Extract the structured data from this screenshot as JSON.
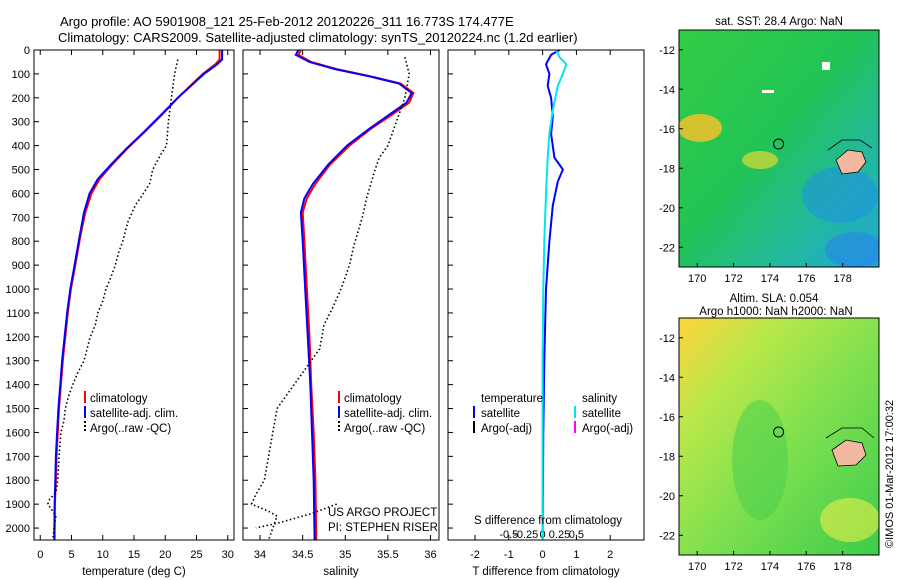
{
  "header": {
    "line1": "Argo profile: AO 5901908_121 25-Feb-2012 20120226_311 16.773S 174.477E",
    "line2": "Climatology: CARS2009. Satellite-adjusted climatology: synTS_20120224.nc (1.2d earlier)"
  },
  "side_stamp": "©IMOS 01-Mar-2012 17:00:32",
  "credits": {
    "project": "US ARGO PROJECT",
    "pi": "PI: STEPHEN RISER"
  },
  "colors": {
    "climatology": "#ff0000",
    "satellite": "#0000ff",
    "argo": "#000000",
    "sat_salinity": "#00e5ee",
    "argo_salinity": "#ff00ff"
  },
  "chart_data": [
    {
      "type": "line",
      "xlabel": "temperature (deg C)",
      "ylabel": "",
      "xlim": [
        -1,
        31
      ],
      "ylim": [
        2050,
        0
      ],
      "xticks": [
        0,
        5,
        10,
        15,
        20,
        25,
        30
      ],
      "yticks": [
        0,
        100,
        200,
        300,
        400,
        500,
        600,
        700,
        800,
        900,
        1000,
        1100,
        1200,
        1300,
        1400,
        1500,
        1600,
        1700,
        1800,
        1900,
        2000
      ],
      "legend": [
        "climatology",
        "satellite-adj. clim.",
        "Argo(..raw -QC)"
      ],
      "series": [
        {
          "name": "climatology",
          "color": "#ff0000",
          "style": "solid",
          "points": [
            [
              28.7,
              0
            ],
            [
              28.7,
              40
            ],
            [
              28.0,
              60
            ],
            [
              26.0,
              100
            ],
            [
              24.0,
              150
            ],
            [
              22.0,
              200
            ],
            [
              19.5,
              270
            ],
            [
              16.8,
              340
            ],
            [
              14.0,
              410
            ],
            [
              11.5,
              480
            ],
            [
              9.5,
              540
            ],
            [
              8.2,
              600
            ],
            [
              7.2,
              680
            ],
            [
              6.4,
              780
            ],
            [
              5.6,
              900
            ],
            [
              4.9,
              1000
            ],
            [
              4.4,
              1100
            ],
            [
              4.0,
              1200
            ],
            [
              3.6,
              1300
            ],
            [
              3.3,
              1400
            ],
            [
              3.0,
              1500
            ],
            [
              2.8,
              1600
            ],
            [
              2.6,
              1700
            ],
            [
              2.5,
              1800
            ],
            [
              2.35,
              1900
            ],
            [
              2.3,
              2050
            ]
          ]
        },
        {
          "name": "satellite-adj. clim.",
          "color": "#0000ff",
          "style": "solid",
          "points": [
            [
              29.1,
              0
            ],
            [
              29.1,
              40
            ],
            [
              28.3,
              60
            ],
            [
              26.2,
              100
            ],
            [
              24.1,
              150
            ],
            [
              22.0,
              200
            ],
            [
              19.4,
              270
            ],
            [
              16.7,
              340
            ],
            [
              13.9,
              410
            ],
            [
              11.3,
              480
            ],
            [
              9.2,
              540
            ],
            [
              7.9,
              600
            ],
            [
              7.0,
              680
            ],
            [
              6.3,
              780
            ],
            [
              5.5,
              900
            ],
            [
              4.8,
              1000
            ],
            [
              4.3,
              1100
            ],
            [
              3.9,
              1200
            ],
            [
              3.5,
              1300
            ],
            [
              3.2,
              1400
            ],
            [
              2.9,
              1500
            ],
            [
              2.7,
              1600
            ],
            [
              2.5,
              1700
            ],
            [
              2.4,
              1800
            ],
            [
              2.3,
              1900
            ],
            [
              2.25,
              2050
            ]
          ]
        },
        {
          "name": "Argo(..raw -QC)",
          "color": "#000000",
          "style": "dotted",
          "points": [
            [
              22.0,
              40
            ],
            [
              21.5,
              100
            ],
            [
              21.0,
              200
            ],
            [
              20.5,
              300
            ],
            [
              20.2,
              400
            ],
            [
              19.2,
              440
            ],
            [
              18.0,
              500
            ],
            [
              17.5,
              560
            ],
            [
              16.5,
              600
            ],
            [
              15.2,
              650
            ],
            [
              14.0,
              720
            ],
            [
              13.2,
              800
            ],
            [
              12.5,
              850
            ],
            [
              12.0,
              900
            ],
            [
              11.3,
              950
            ],
            [
              10.5,
              1000
            ],
            [
              10.0,
              1050
            ],
            [
              9.2,
              1100
            ],
            [
              8.8,
              1150
            ],
            [
              8.0,
              1200
            ],
            [
              7.5,
              1250
            ],
            [
              7.0,
              1300
            ],
            [
              6.0,
              1350
            ],
            [
              5.2,
              1400
            ],
            [
              4.5,
              1450
            ],
            [
              4.0,
              1500
            ],
            [
              3.8,
              1550
            ],
            [
              3.3,
              1600
            ],
            [
              3.0,
              1700
            ],
            [
              2.8,
              1800
            ],
            [
              2.5,
              1850
            ],
            [
              1.5,
              1880
            ],
            [
              1.2,
              1900
            ],
            [
              2.0,
              1930
            ],
            [
              2.5,
              1950
            ],
            [
              2.2,
              2000
            ],
            [
              2.0,
              2050
            ]
          ]
        }
      ]
    },
    {
      "type": "line",
      "xlabel": "salinity",
      "ylabel": "",
      "xlim": [
        33.8,
        36.1
      ],
      "ylim": [
        2050,
        0
      ],
      "xticks": [
        34,
        34.5,
        35,
        35.5,
        36
      ],
      "legend": [
        "climatology",
        "satellite-adj. clim.",
        "Argo(..raw -QC)"
      ],
      "series": [
        {
          "name": "climatology",
          "color": "#ff0000",
          "style": "solid",
          "points": [
            [
              34.48,
              0
            ],
            [
              34.45,
              20
            ],
            [
              34.6,
              50
            ],
            [
              34.9,
              80
            ],
            [
              35.3,
              110
            ],
            [
              35.65,
              140
            ],
            [
              35.8,
              180
            ],
            [
              35.75,
              220
            ],
            [
              35.55,
              270
            ],
            [
              35.3,
              330
            ],
            [
              35.05,
              400
            ],
            [
              34.82,
              480
            ],
            [
              34.65,
              560
            ],
            [
              34.55,
              620
            ],
            [
              34.5,
              680
            ],
            [
              34.52,
              800
            ],
            [
              34.55,
              1000
            ],
            [
              34.58,
              1200
            ],
            [
              34.6,
              1400
            ],
            [
              34.63,
              1600
            ],
            [
              34.65,
              1800
            ],
            [
              34.66,
              2050
            ]
          ]
        },
        {
          "name": "satellite-adj. clim.",
          "color": "#0000ff",
          "style": "solid",
          "points": [
            [
              34.45,
              0
            ],
            [
              34.42,
              20
            ],
            [
              34.58,
              50
            ],
            [
              34.88,
              80
            ],
            [
              35.28,
              110
            ],
            [
              35.63,
              140
            ],
            [
              35.78,
              180
            ],
            [
              35.72,
              220
            ],
            [
              35.52,
              270
            ],
            [
              35.28,
              330
            ],
            [
              35.02,
              400
            ],
            [
              34.8,
              480
            ],
            [
              34.62,
              560
            ],
            [
              34.52,
              620
            ],
            [
              34.48,
              680
            ],
            [
              34.5,
              800
            ],
            [
              34.53,
              1000
            ],
            [
              34.56,
              1200
            ],
            [
              34.59,
              1400
            ],
            [
              34.61,
              1600
            ],
            [
              34.63,
              1800
            ],
            [
              34.64,
              2050
            ]
          ]
        },
        {
          "name": "Argo(..raw -QC)",
          "color": "#000000",
          "style": "dotted",
          "points": [
            [
              35.7,
              30
            ],
            [
              35.75,
              100
            ],
            [
              35.7,
              200
            ],
            [
              35.6,
              300
            ],
            [
              35.5,
              400
            ],
            [
              35.4,
              450
            ],
            [
              35.35,
              500
            ],
            [
              35.3,
              560
            ],
            [
              35.25,
              620
            ],
            [
              35.2,
              700
            ],
            [
              35.15,
              760
            ],
            [
              35.1,
              820
            ],
            [
              35.05,
              900
            ],
            [
              35.0,
              950
            ],
            [
              34.95,
              1000
            ],
            [
              34.85,
              1080
            ],
            [
              34.75,
              1150
            ],
            [
              34.7,
              1250
            ],
            [
              34.6,
              1300
            ],
            [
              34.5,
              1350
            ],
            [
              34.4,
              1400
            ],
            [
              34.3,
              1450
            ],
            [
              34.2,
              1500
            ],
            [
              34.15,
              1600
            ],
            [
              34.1,
              1700
            ],
            [
              34.05,
              1800
            ],
            [
              33.95,
              1860
            ],
            [
              33.9,
              1900
            ],
            [
              34.1,
              1930
            ],
            [
              34.2,
              1950
            ],
            [
              34.15,
              2000
            ],
            [
              34.1,
              2050
            ]
          ]
        },
        {
          "name": "Argo(..raw -QC) deep",
          "color": "#000000",
          "style": "dotted",
          "points": [
            [
              34.9,
              1900
            ],
            [
              34.6,
              1940
            ],
            [
              34.2,
              1980
            ],
            [
              33.95,
              2000
            ]
          ]
        }
      ]
    },
    {
      "type": "line",
      "xlabel": "T difference from climatology",
      "xlabel_top": "S difference from climatology",
      "xlim": [
        -2.8,
        3
      ],
      "ylim": [
        2050,
        0
      ],
      "xticks": [
        -2,
        -1,
        0,
        1,
        2
      ],
      "xticks_s": [
        "-0.5",
        "-0.25",
        "0",
        "0.25",
        "0.5"
      ],
      "legend_temperature": [
        "temperature",
        "satellite",
        "Argo(-adj)"
      ],
      "legend_salinity": [
        "salinity",
        "satellite",
        "Argo(-adj)"
      ],
      "series": [
        {
          "name": "satellite",
          "color": "#0000ff",
          "style": "solid",
          "points": [
            [
              0.5,
              0
            ],
            [
              0.25,
              20
            ],
            [
              0.1,
              60
            ],
            [
              0.2,
              100
            ],
            [
              0.15,
              150
            ],
            [
              0.25,
              200
            ],
            [
              0.3,
              280
            ],
            [
              0.25,
              350
            ],
            [
              0.35,
              450
            ],
            [
              0.6,
              500
            ],
            [
              0.45,
              550
            ],
            [
              0.3,
              650
            ],
            [
              0.2,
              800
            ],
            [
              0.1,
              1000
            ],
            [
              0.05,
              1300
            ],
            [
              0.02,
              1600
            ],
            [
              0.0,
              2050
            ]
          ]
        },
        {
          "name": "satellite",
          "color": "#00e5ee",
          "style": "solid",
          "points": [
            [
              0.4,
              0
            ],
            [
              0.5,
              30
            ],
            [
              0.7,
              60
            ],
            [
              0.6,
              100
            ],
            [
              0.45,
              150
            ],
            [
              0.3,
              250
            ],
            [
              0.2,
              350
            ],
            [
              0.15,
              450
            ],
            [
              0.1,
              600
            ],
            [
              0.05,
              800
            ],
            [
              0.02,
              1000
            ],
            [
              0.0,
              1300
            ],
            [
              0.0,
              2050
            ]
          ]
        }
      ]
    }
  ],
  "maps": [
    {
      "title": "sat. SST: 28.4  Argo: NaN",
      "title2": "",
      "xticks": [
        170,
        172,
        174,
        176,
        178
      ],
      "yticks": [
        -12,
        -14,
        -16,
        -18,
        -20,
        -22
      ],
      "xlim": [
        169,
        180
      ],
      "ylim": [
        -23,
        -11
      ],
      "argo_position": [
        174.477,
        -16.773
      ]
    },
    {
      "title": "Altim. SLA: 0.054",
      "title2": "Argo h1000: NaN  h2000: NaN",
      "xticks": [
        170,
        172,
        174,
        176,
        178
      ],
      "yticks": [
        -12,
        -14,
        -16,
        -18,
        -20,
        -22
      ],
      "xlim": [
        169,
        180
      ],
      "ylim": [
        -23,
        -11
      ],
      "argo_position": [
        174.477,
        -16.773
      ]
    }
  ]
}
